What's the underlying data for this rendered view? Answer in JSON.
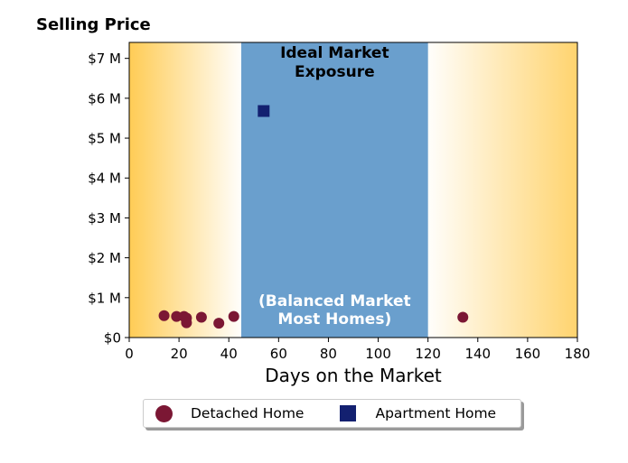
{
  "chart_data": {
    "type": "scatter",
    "title": "",
    "ylabel": "Selling Price",
    "xlabel": "Days on the Market",
    "xlim": [
      0,
      180
    ],
    "ylim": [
      0,
      7400000
    ],
    "x_ticks": [
      0,
      20,
      40,
      60,
      80,
      100,
      120,
      140,
      160,
      180
    ],
    "y_ticks": [
      {
        "value": 0,
        "label": "$0"
      },
      {
        "value": 1000000,
        "label": "$1 M"
      },
      {
        "value": 2000000,
        "label": "$2 M"
      },
      {
        "value": 3000000,
        "label": "$3 M"
      },
      {
        "value": 4000000,
        "label": "$4 M"
      },
      {
        "value": 5000000,
        "label": "$5 M"
      },
      {
        "value": 6000000,
        "label": "$6 M"
      },
      {
        "value": 7000000,
        "label": "$7 M"
      }
    ],
    "ideal_band": {
      "x_range": [
        45,
        120
      ],
      "color": "#6a9fcd",
      "label_top": [
        "Ideal Market",
        "Exposure"
      ],
      "label_bottom": [
        "(Balanced Market",
        "Most Homes)"
      ]
    },
    "background_gradient_color": "#ffcc55",
    "series": [
      {
        "name": "Detached Home",
        "marker": "circle",
        "color": "#7b1734",
        "points": [
          {
            "x": 14,
            "y": 550000
          },
          {
            "x": 19,
            "y": 530000
          },
          {
            "x": 22,
            "y": 530000
          },
          {
            "x": 23,
            "y": 490000
          },
          {
            "x": 23,
            "y": 370000
          },
          {
            "x": 29,
            "y": 510000
          },
          {
            "x": 36,
            "y": 360000
          },
          {
            "x": 42,
            "y": 530000
          },
          {
            "x": 134,
            "y": 510000
          }
        ]
      },
      {
        "name": "Apartment Home",
        "marker": "square",
        "color": "#132070",
        "points": [
          {
            "x": 54,
            "y": 5680000
          }
        ]
      }
    ],
    "grid": false,
    "legend_position": "bottom-center"
  }
}
